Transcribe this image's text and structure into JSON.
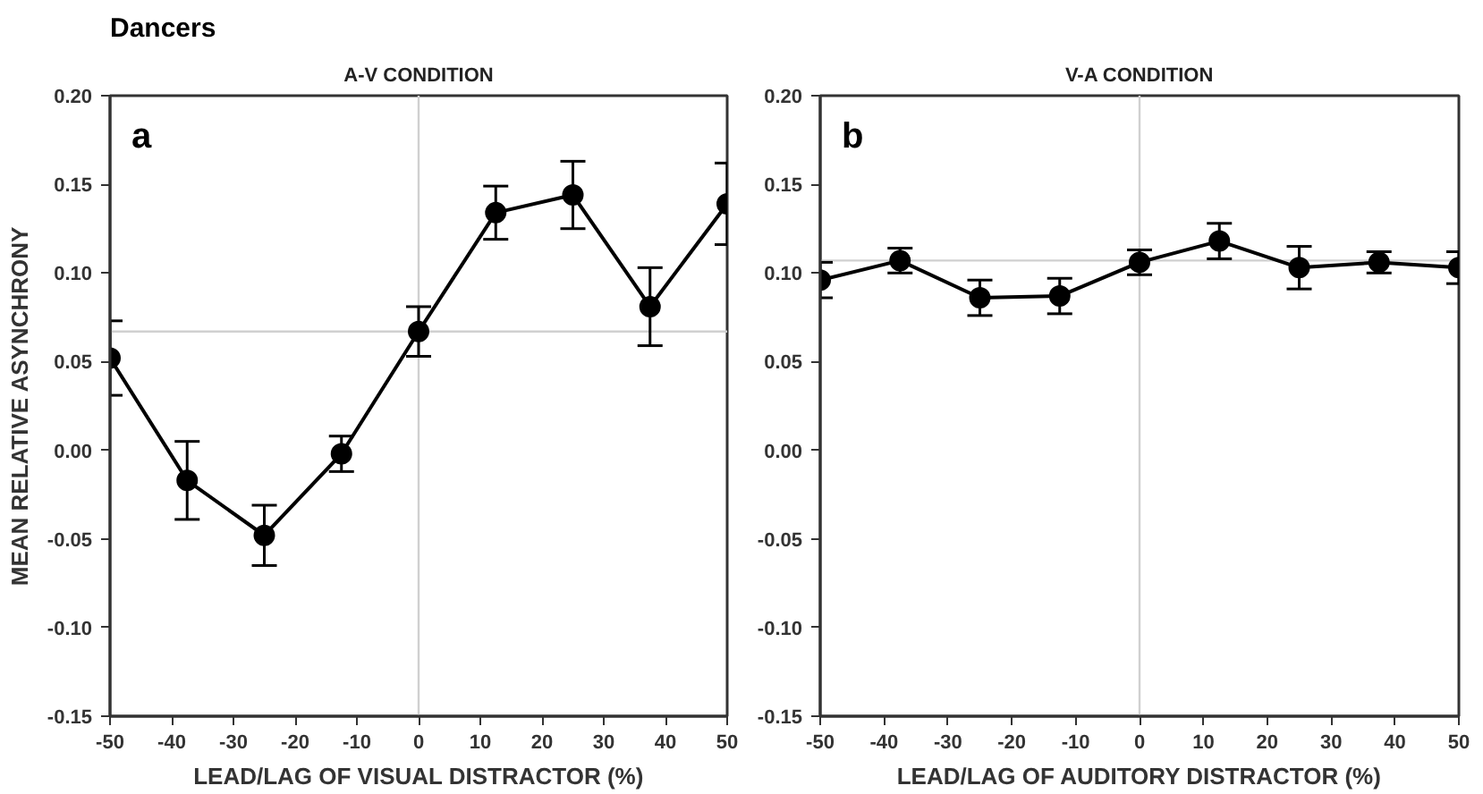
{
  "chart_data": [
    {
      "type": "line",
      "title": "A-V CONDITION",
      "xlabel": "LEAD/LAG OF VISUAL DISTRACTOR (%)",
      "ylabel": "MEAN RELATIVE ASYNCHRONY",
      "annotations": [
        "Dancers",
        "a"
      ],
      "x": [
        -50,
        -37.5,
        -25,
        -12.5,
        0,
        12.5,
        25,
        37.5,
        50
      ],
      "series": [
        {
          "color": "#000000",
          "values": [
            0.052,
            -0.017,
            -0.048,
            -0.002,
            0.067,
            0.134,
            0.144,
            0.081,
            0.139
          ],
          "errors": [
            0.021,
            0.022,
            0.017,
            0.01,
            0.014,
            0.015,
            0.019,
            0.022,
            0.023
          ]
        }
      ],
      "xlim": [
        -50,
        50
      ],
      "xticks": [
        -50,
        -40,
        -30,
        -20,
        -10,
        0,
        10,
        20,
        30,
        40,
        50
      ],
      "ylim": [
        -0.15,
        0.2
      ],
      "yticks": [
        {
          "value": -0.15,
          "label": "-0.15"
        },
        {
          "value": -0.1,
          "label": "-0.10"
        },
        {
          "value": -0.05,
          "label": "-0.05"
        },
        {
          "value": 0,
          "label": "0.00"
        },
        {
          "value": 0.05,
          "label": "0.05"
        },
        {
          "value": 0.1,
          "label": "0.10"
        },
        {
          "value": 0.15,
          "label": "0.15"
        },
        {
          "value": 0.2,
          "label": "0.20"
        }
      ],
      "ref_lines": [
        {
          "axis": "x",
          "value": 0,
          "color": "#d0d0d0"
        },
        {
          "axis": "y",
          "value": 0.067,
          "color": "#d0d0d0"
        }
      ],
      "marker": "circle",
      "line_style": "solid",
      "grid": false
    },
    {
      "type": "line",
      "title": "V-A CONDITION",
      "xlabel": "LEAD/LAG OF AUDITORY DISTRACTOR (%)",
      "annotations": [
        "b"
      ],
      "x": [
        -50,
        -37.5,
        -25,
        -12.5,
        0,
        12.5,
        25,
        37.5,
        50
      ],
      "series": [
        {
          "color": "#000000",
          "values": [
            0.096,
            0.107,
            0.086,
            0.087,
            0.106,
            0.118,
            0.103,
            0.106,
            0.103
          ],
          "errors": [
            0.01,
            0.007,
            0.01,
            0.01,
            0.007,
            0.01,
            0.012,
            0.006,
            0.009
          ]
        }
      ],
      "xlim": [
        -50,
        50
      ],
      "xticks": [
        -50,
        -40,
        -30,
        -20,
        -10,
        0,
        10,
        20,
        30,
        40,
        50
      ],
      "ylim": [
        -0.15,
        0.2
      ],
      "yticks": [
        {
          "value": -0.15,
          "label": "-0.15"
        },
        {
          "value": -0.1,
          "label": "-0.10"
        },
        {
          "value": -0.05,
          "label": "-0.05"
        },
        {
          "value": 0,
          "label": "0.00"
        },
        {
          "value": 0.05,
          "label": "0.05"
        },
        {
          "value": 0.1,
          "label": "0.10"
        },
        {
          "value": 0.15,
          "label": "0.15"
        },
        {
          "value": 0.2,
          "label": "0.20"
        }
      ],
      "ref_lines": [
        {
          "axis": "x",
          "value": 0,
          "color": "#d0d0d0"
        },
        {
          "axis": "y",
          "value": 0.107,
          "color": "#d0d0d0"
        }
      ],
      "marker": "circle",
      "line_style": "solid",
      "grid": false
    }
  ]
}
